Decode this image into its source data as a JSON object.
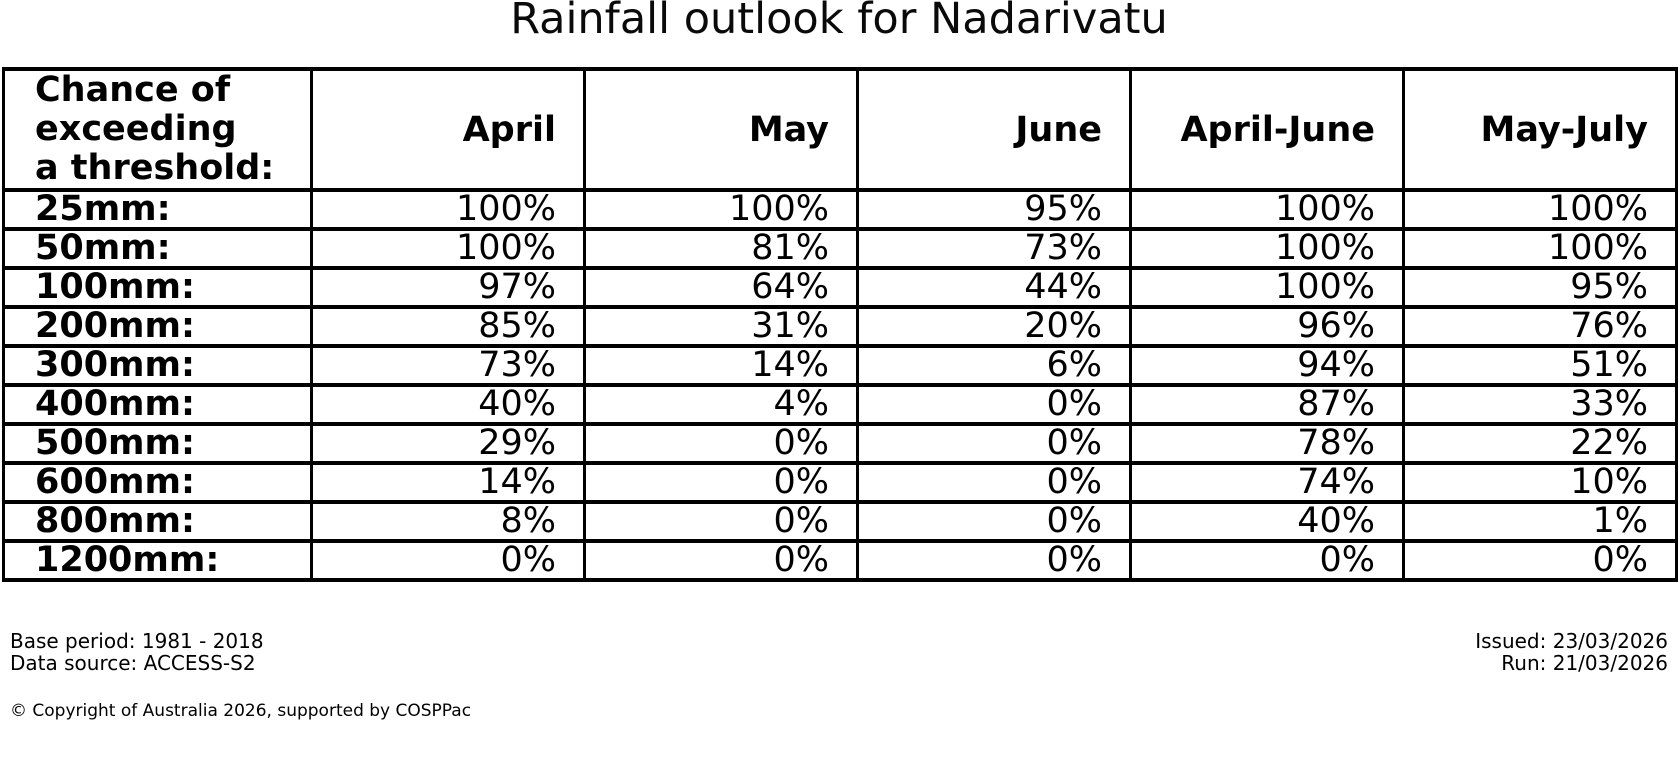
{
  "chart_data": {
    "type": "table",
    "title": "Rainfall outlook for Nadarivatu",
    "corner_label": "Chance of\nexceeding\na threshold:",
    "columns": [
      "April",
      "May",
      "June",
      "April-June",
      "May-July"
    ],
    "rows": [
      {
        "label": "25mm:",
        "values": [
          "100%",
          "100%",
          "95%",
          "100%",
          "100%"
        ]
      },
      {
        "label": "50mm:",
        "values": [
          "100%",
          "81%",
          "73%",
          "100%",
          "100%"
        ]
      },
      {
        "label": "100mm:",
        "values": [
          "97%",
          "64%",
          "44%",
          "100%",
          "95%"
        ]
      },
      {
        "label": "200mm:",
        "values": [
          "85%",
          "31%",
          "20%",
          "96%",
          "76%"
        ]
      },
      {
        "label": "300mm:",
        "values": [
          "73%",
          "14%",
          "6%",
          "94%",
          "51%"
        ]
      },
      {
        "label": "400mm:",
        "values": [
          "40%",
          "4%",
          "0%",
          "87%",
          "33%"
        ]
      },
      {
        "label": "500mm:",
        "values": [
          "29%",
          "0%",
          "0%",
          "78%",
          "22%"
        ]
      },
      {
        "label": "600mm:",
        "values": [
          "14%",
          "0%",
          "0%",
          "74%",
          "10%"
        ]
      },
      {
        "label": "800mm:",
        "values": [
          "8%",
          "0%",
          "0%",
          "40%",
          "1%"
        ]
      },
      {
        "label": "1200mm:",
        "values": [
          "0%",
          "0%",
          "0%",
          "0%",
          "0%"
        ]
      }
    ]
  },
  "footer": {
    "base_period": "Base period: 1981 - 2018",
    "data_source": "Data source: ACCESS-S2",
    "issued": "Issued: 23/03/2026",
    "run": "Run: 21/03/2026",
    "copyright": "© Copyright of Australia 2026, supported by COSPPac"
  },
  "colors": {
    "text": "#000000",
    "border": "#000000",
    "background": "#ffffff"
  }
}
